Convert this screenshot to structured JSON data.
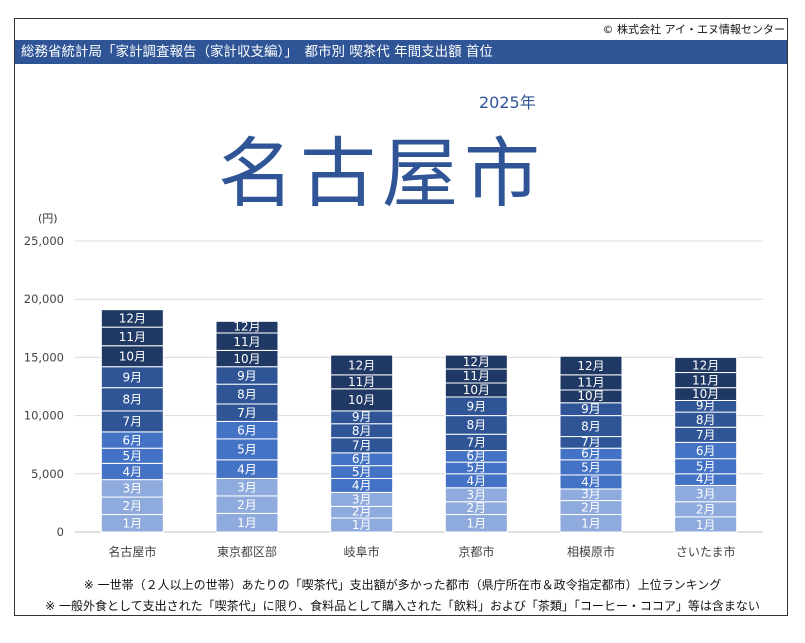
{
  "header": {
    "copyright": "© 株式会社 アイ・エヌ情報センター",
    "banner": "総務省統計局「家計調査報告（家計収支編）」　都市別 喫茶代 年間支出額 首位",
    "year": "2025年",
    "top_city": "名古屋市"
  },
  "chart_data": {
    "type": "bar",
    "stacked": true,
    "unit_label": "(円)",
    "ylim": [
      0,
      25000
    ],
    "yticks": [
      0,
      5000,
      10000,
      15000,
      20000,
      25000
    ],
    "ytick_labels": [
      "0",
      "5,000",
      "10,000",
      "15,000",
      "20,000",
      "25,000"
    ],
    "grid": true,
    "categories": [
      "名古屋市",
      "東京都区部",
      "岐阜市",
      "京都市",
      "相模原市",
      "さいたま市"
    ],
    "series": [
      {
        "name": "1月",
        "color": "#8faadc",
        "values": [
          1500,
          1600,
          1200,
          1500,
          1500,
          1300
        ]
      },
      {
        "name": "2月",
        "color": "#8faadc",
        "values": [
          1500,
          1500,
          1000,
          1100,
          1200,
          1300
        ]
      },
      {
        "name": "3月",
        "color": "#8faadc",
        "values": [
          1500,
          1500,
          1200,
          1200,
          1000,
          1400
        ]
      },
      {
        "name": "4月",
        "color": "#4472c4",
        "values": [
          1400,
          1600,
          1200,
          1200,
          1200,
          1000
        ]
      },
      {
        "name": "5月",
        "color": "#4472c4",
        "values": [
          1300,
          1800,
          1100,
          1000,
          1300,
          1300
        ]
      },
      {
        "name": "6月",
        "color": "#4472c4",
        "values": [
          1400,
          1500,
          1100,
          1000,
          1000,
          1400
        ]
      },
      {
        "name": "7月",
        "color": "#2f5597",
        "values": [
          1800,
          1500,
          1300,
          1400,
          1000,
          1300
        ]
      },
      {
        "name": "8月",
        "color": "#2f5597",
        "values": [
          2000,
          1700,
          1200,
          1600,
          1800,
          1300
        ]
      },
      {
        "name": "9月",
        "color": "#2f5597",
        "values": [
          1800,
          1500,
          1100,
          1600,
          1100,
          1000
        ]
      },
      {
        "name": "10月",
        "color": "#203864",
        "values": [
          1800,
          1400,
          1900,
          1200,
          1100,
          1100
        ]
      },
      {
        "name": "11月",
        "color": "#203864",
        "values": [
          1600,
          1500,
          1200,
          1200,
          1300,
          1300
        ]
      },
      {
        "name": "12月",
        "color": "#203864",
        "values": [
          1500,
          1000,
          1700,
          1200,
          1600,
          1300
        ]
      }
    ]
  },
  "notes": [
    "※ 一世帯（２人以上の世帯）あたりの「喫茶代」支出額が多かった都市（県庁所在市＆政令指定都市）上位ランキング",
    "※ 一般外食として支出された「喫茶代」に限り、食料品として購入された「飲料」および「茶類」「コーヒー・ココア」等は含まない"
  ]
}
